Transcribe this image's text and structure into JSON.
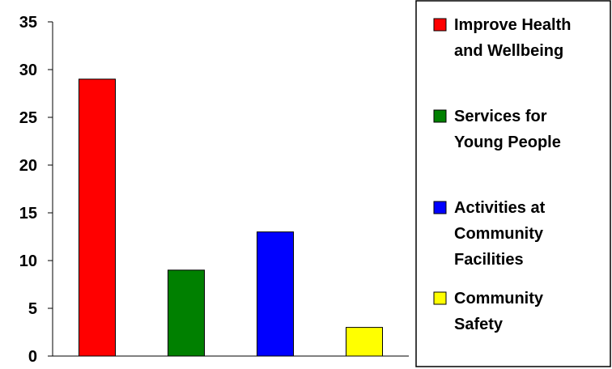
{
  "chart_data": {
    "type": "bar",
    "categories": [
      "Improve Health and Wellbeing",
      "Services for Young People",
      "Activities at Community Facilities",
      "Community Safety"
    ],
    "values": [
      29,
      9,
      13,
      3
    ],
    "colors": [
      "#ff0000",
      "#008000",
      "#0000ff",
      "#ffff00"
    ],
    "title": "",
    "xlabel": "",
    "ylabel": "",
    "ylim": [
      0,
      35
    ],
    "yticks": [
      "0",
      "5",
      "10",
      "15",
      "20",
      "25",
      "30",
      "35"
    ],
    "grid": false,
    "legend_position": "right",
    "legend": [
      {
        "lines": [
          "Improve Health",
          "and Wellbeing"
        ]
      },
      {
        "lines": [
          "Services for",
          "Young People"
        ]
      },
      {
        "lines": [
          "Activities at",
          "Community",
          "Facilities"
        ]
      },
      {
        "lines": [
          "Community",
          "Safety"
        ]
      }
    ]
  }
}
